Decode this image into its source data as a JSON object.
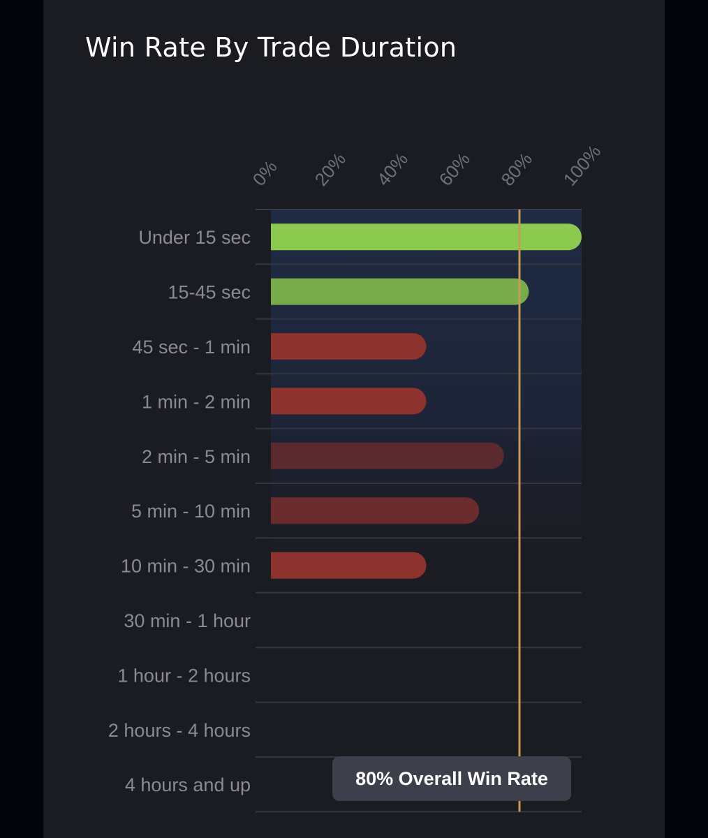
{
  "chart_data": {
    "type": "bar",
    "orientation": "horizontal",
    "title": "Win Rate By Trade Duration",
    "categories": [
      "Under 15 sec",
      "15-45 sec",
      "45 sec - 1 min",
      "1 min - 2 min",
      "2 min - 5 min",
      "5 min - 10 min",
      "10 min - 30 min",
      "30 min - 1 hour",
      "1 hour - 2 hours",
      "2 hours - 4 hours",
      "4 hours and up"
    ],
    "values": [
      100,
      83,
      50,
      50,
      75,
      67,
      50,
      null,
      null,
      null,
      null
    ],
    "bar_colors": [
      "#8bc94f",
      "#78ab49",
      "#8d322c",
      "#8d322c",
      "#5a2a2f",
      "#6a2c2d",
      "#8d322c",
      null,
      null,
      null,
      null
    ],
    "xlim": [
      0,
      100
    ],
    "xticks": [
      "0%",
      "20%",
      "40%",
      "60%",
      "80%",
      "100%"
    ],
    "tick_values": [
      0,
      20,
      40,
      60,
      80,
      100
    ],
    "reference_line": {
      "value": 80,
      "label": "80% Overall Win Rate",
      "color": "#c99a55"
    },
    "grid": true,
    "legend": "none"
  }
}
